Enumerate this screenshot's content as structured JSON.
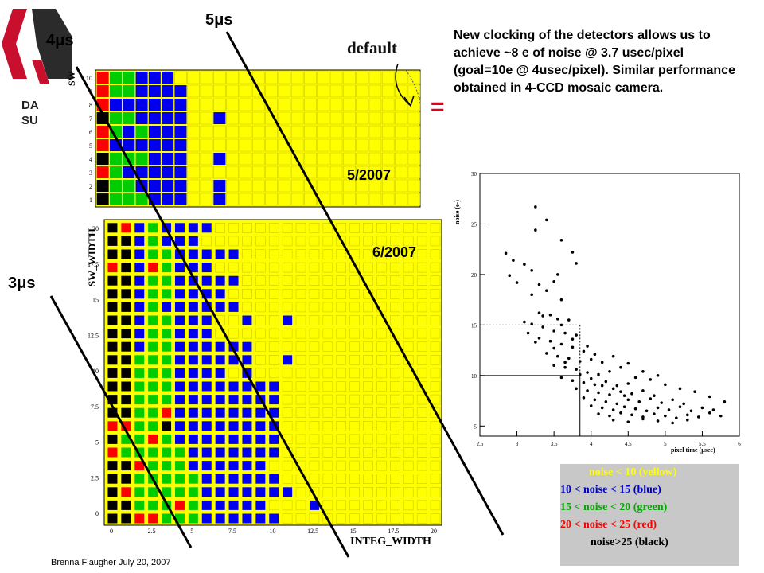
{
  "logo": {
    "line1": "DA",
    "line2": "SU"
  },
  "labels": {
    "t5": "5μs",
    "t4": "4μs",
    "t3": "3μs",
    "default": "default",
    "date1": "5/2007",
    "date2": "6/2007",
    "equals": "="
  },
  "note": "New clocking of the detectors allows us to achieve ~8 e of noise @ 3.7 usec/pixel (goal=10e @ 4usec/pixel).  Similar performance obtained in 4-CCD mosaic camera.",
  "footer": "Brenna Flaugher July 20, 2007",
  "legend": {
    "yellow": "noise  < 10 (yellow)",
    "blue": "10 < noise < 15  (blue)",
    "green": "15 < noise < 20  (green)",
    "red": "20 < noise < 25  (red)",
    "black": "noise>25 (black)"
  },
  "colors": {
    "Y": "#ffff00",
    "G": "#00cc00",
    "B": "#0000ee",
    "R": "#ff0000",
    "K": "#000000",
    "bg": "#ffff00",
    "equals": "#e3001b",
    "legend_bg": "#c8c8c8"
  },
  "chart_data": [
    {
      "type": "heatmap",
      "title": "default",
      "ylabel": "SW",
      "y_ticks": [
        "10",
        "9",
        "8",
        "7",
        "6",
        "5",
        "4",
        "3",
        "2",
        "1"
      ],
      "rows": [
        "RGGBBBYYYYYYYYYYYYYYYYYYY",
        "RGGBBBBYYYYYYYYYYYYYYYYYY",
        "RBBBBBBYYYYYYYYYYYYYYYYYY",
        "KGGBBBBYYBYYYYYYYYYYYYYYY",
        "RGBGBBBYYYYYYYYYYYYYYYYYY",
        "RBBBBBBYYYYYYYYYYYYYYYYYY",
        "KGGGBBBYYBYYYYYYYYYYYYYYY",
        "RGBBBBBYYYYYYYYYYYYYYYYYY",
        "KGGBBBBYYBYYYYYYYYYYYYYYY",
        "KGGGBBBYYBYYYYYYYYYYYYYYY"
      ]
    },
    {
      "type": "heatmap",
      "xlabel": "INTEG_WIDTH",
      "ylabel": "SW_WIDTH",
      "x_ticks": [
        "0",
        "2.5",
        "5",
        "7.5",
        "10",
        "12.5",
        "15",
        "17.5",
        "20"
      ],
      "y_ticks": [
        "20",
        "17.5",
        "15",
        "12.5",
        "10",
        "7.5",
        "5",
        "2.5",
        "0"
      ],
      "rows": [
        "KRBGBBBBYYYYYYYYYYYYYYYYY",
        "KKBGBBBYYYYYYYYYYYYYYYYYY",
        "KKBGGBBBBBYYYYYYYYYYYYYYY",
        "RKBRGBBBYYYYYYYYYYYYYYYYY",
        "KKBGGBBBBBYYYYYYYYYYYYYYY",
        "KKBGGBBBBYYYYYYYYYYYYYYYY",
        "KKBGBBBBBBYYYYYYYYYYYYYYY",
        "KKBGGBBBYYBYYBYYYYYYYYYYY",
        "KKBGGBBBYYYYYYYYYYYYYYYYY",
        "KKBGGBBBBBBYYYYYYYYYYYYYY",
        "KKGGGBBBBBBYYBYYYYYYYYYYY",
        "KKGGGBBBBYBYYYYYYYYYYYYYY",
        "KKGGGBBBBBBBBYYYYYYYYYYYY",
        "KKGGGBBBBBBBBYYYYYYYYYYYY",
        "KKGGRBBBBBBBBYYYYYYYYYYYY",
        "RRGGKBBBBBBBBYYYYYYYYYYYY",
        "KGGRGBBBBBBBBYYYYYYYYYYYY",
        "RGGGGGBBBBBBBYYYYYYYYYYYY",
        "KKRGGGBBBBBBYYYYYYYYYYYYY",
        "KKGGGGGBBBBBBYYYYYYYYYYYY",
        "KRGGGGGBBBBBBBYYYYYYYYYYY",
        "KKGGGRGBBBBBYYYBYYYYYYYYY",
        "KKRRGGGBBBBBBYYYYYYYYYYYY"
      ]
    },
    {
      "type": "scatter",
      "xlabel": "pixel time (μsec)",
      "ylabel": "noise (e-)",
      "xlim": [
        2.5,
        6
      ],
      "ylim": [
        4,
        30
      ],
      "x_ticks": [
        "2.5",
        "3",
        "3.5",
        "4",
        "4.5",
        "5",
        "5.5",
        "6"
      ],
      "y_ticks": [
        "5",
        "10",
        "15",
        "20",
        "25",
        "30"
      ],
      "reference_lines": {
        "solid": {
          "x": 3.85,
          "y": 10
        },
        "dotted": {
          "x": 3.85,
          "y": 15
        }
      },
      "points": [
        [
          3.25,
          26.7
        ],
        [
          3.4,
          25.4
        ],
        [
          3.25,
          24.4
        ],
        [
          3.6,
          23.4
        ],
        [
          3.75,
          22.2
        ],
        [
          3.8,
          21.1
        ],
        [
          2.85,
          22.1
        ],
        [
          2.95,
          21.4
        ],
        [
          3.1,
          21.0
        ],
        [
          3.2,
          20.4
        ],
        [
          2.9,
          19.9
        ],
        [
          3.0,
          19.2
        ],
        [
          3.55,
          20.0
        ],
        [
          3.5,
          19.3
        ],
        [
          3.3,
          19.0
        ],
        [
          3.4,
          18.4
        ],
        [
          3.2,
          18.0
        ],
        [
          3.6,
          17.5
        ],
        [
          3.3,
          16.2
        ],
        [
          3.45,
          16.0
        ],
        [
          3.55,
          15.6
        ],
        [
          3.7,
          15.5
        ],
        [
          3.1,
          15.3
        ],
        [
          3.2,
          15.1
        ],
        [
          3.35,
          14.8
        ],
        [
          3.5,
          14.4
        ],
        [
          3.65,
          14.2
        ],
        [
          3.8,
          14.0
        ],
        [
          3.3,
          13.7
        ],
        [
          3.45,
          13.4
        ],
        [
          3.6,
          13.1
        ],
        [
          3.75,
          12.8
        ],
        [
          3.9,
          12.4
        ],
        [
          3.4,
          12.2
        ],
        [
          3.55,
          11.9
        ],
        [
          3.7,
          11.7
        ],
        [
          3.85,
          11.4
        ],
        [
          4.0,
          11.6
        ],
        [
          4.15,
          11.3
        ],
        [
          3.5,
          11.0
        ],
        [
          3.65,
          10.8
        ],
        [
          3.8,
          10.6
        ],
        [
          3.95,
          10.3
        ],
        [
          4.1,
          10.1
        ],
        [
          4.25,
          10.4
        ],
        [
          3.6,
          9.8
        ],
        [
          3.75,
          9.5
        ],
        [
          3.9,
          9.3
        ],
        [
          4.05,
          9.1
        ],
        [
          4.2,
          9.4
        ],
        [
          4.35,
          9.0
        ],
        [
          4.5,
          9.2
        ],
        [
          3.8,
          8.7
        ],
        [
          3.95,
          8.5
        ],
        [
          4.1,
          8.3
        ],
        [
          4.25,
          8.1
        ],
        [
          4.4,
          8.4
        ],
        [
          4.55,
          8.2
        ],
        [
          4.7,
          8.5
        ],
        [
          4.85,
          8.0
        ],
        [
          3.9,
          7.8
        ],
        [
          4.05,
          7.6
        ],
        [
          4.2,
          7.4
        ],
        [
          4.35,
          7.2
        ],
        [
          4.5,
          7.6
        ],
        [
          4.65,
          7.4
        ],
        [
          4.8,
          7.7
        ],
        [
          4.95,
          7.3
        ],
        [
          5.1,
          7.6
        ],
        [
          5.25,
          7.2
        ],
        [
          4.0,
          7.0
        ],
        [
          4.15,
          6.8
        ],
        [
          4.3,
          6.6
        ],
        [
          4.45,
          6.9
        ],
        [
          4.6,
          6.7
        ],
        [
          4.75,
          6.5
        ],
        [
          4.9,
          6.8
        ],
        [
          5.05,
          6.6
        ],
        [
          5.2,
          6.9
        ],
        [
          5.35,
          6.5
        ],
        [
          5.5,
          6.8
        ],
        [
          5.65,
          6.6
        ],
        [
          4.1,
          6.2
        ],
        [
          4.25,
          6.0
        ],
        [
          4.4,
          6.3
        ],
        [
          4.55,
          6.1
        ],
        [
          4.7,
          5.9
        ],
        [
          4.85,
          6.2
        ],
        [
          5.0,
          6.0
        ],
        [
          5.15,
          5.8
        ],
        [
          5.3,
          6.1
        ],
        [
          5.45,
          5.9
        ],
        [
          5.6,
          6.3
        ],
        [
          5.75,
          6.0
        ],
        [
          4.3,
          5.6
        ],
        [
          4.5,
          5.4
        ],
        [
          4.7,
          5.7
        ],
        [
          4.9,
          5.5
        ],
        [
          5.1,
          5.3
        ],
        [
          5.3,
          5.6
        ],
        [
          4.6,
          9.8
        ],
        [
          4.8,
          9.6
        ],
        [
          5.0,
          9.1
        ],
        [
          5.2,
          8.7
        ],
        [
          5.4,
          8.4
        ],
        [
          5.6,
          7.9
        ],
        [
          5.8,
          7.4
        ],
        [
          4.4,
          10.8
        ],
        [
          4.3,
          11.9
        ],
        [
          4.5,
          11.2
        ],
        [
          4.7,
          10.4
        ],
        [
          4.9,
          10.0
        ],
        [
          3.35,
          15.9
        ],
        [
          3.6,
          15.0
        ],
        [
          3.75,
          13.6
        ],
        [
          3.95,
          12.9
        ],
        [
          4.05,
          12.1
        ],
        [
          3.15,
          14.2
        ],
        [
          3.25,
          13.3
        ],
        [
          3.5,
          12.7
        ],
        [
          3.65,
          11.3
        ],
        [
          3.85,
          10.1
        ],
        [
          4.0,
          9.7
        ],
        [
          4.15,
          9.0
        ],
        [
          4.3,
          8.7
        ],
        [
          4.45,
          8.0
        ]
      ]
    }
  ]
}
